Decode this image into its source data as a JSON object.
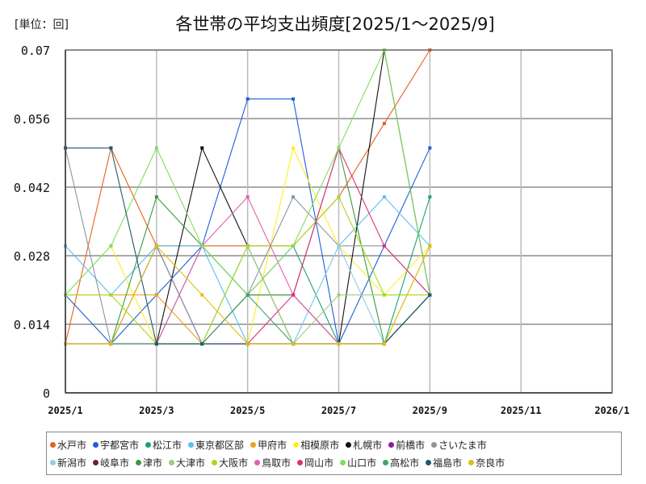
{
  "unit_label": "[単位：回]",
  "title": "各世帯の平均支出頻度[2025/1～2025/9]",
  "chart_data": {
    "type": "line",
    "title": "各世帯の平均支出頻度[2025/1～2025/9]",
    "xlabel": "",
    "ylabel": "[単位：回]",
    "ylim": [
      0,
      0.07
    ],
    "yticks": [
      "0",
      "0.014",
      "0.028",
      "0.042",
      "0.056",
      "0.07"
    ],
    "xticks": [
      "2025/1",
      "2025/3",
      "2025/5",
      "2025/7",
      "2025/9",
      "2025/11",
      "2026/1"
    ],
    "xrange_months": [
      0,
      12
    ],
    "grid": true,
    "legend_position": "bottom",
    "x": [
      "2025/1",
      "2025/2",
      "2025/3",
      "2025/4",
      "2025/5",
      "2025/6",
      "2025/7",
      "2025/8",
      "2025/9"
    ],
    "series": [
      {
        "name": "水戸市",
        "color": "#E8601C",
        "values": [
          0.01,
          0.05,
          0.03,
          0.03,
          0.03,
          0.03,
          0.04,
          0.055,
          0.07
        ]
      },
      {
        "name": "宇都宮市",
        "color": "#1F5FD8",
        "values": [
          0.02,
          0.01,
          0.02,
          0.03,
          0.06,
          0.06,
          0.01,
          0.03,
          0.05
        ]
      },
      {
        "name": "松江市",
        "color": "#1AA37A",
        "values": [
          0.01,
          0.01,
          0.01,
          0.03,
          0.02,
          0.03,
          0.01,
          0.01,
          0.04
        ]
      },
      {
        "name": "東京都区部",
        "color": "#5BC0EB",
        "values": [
          0.03,
          0.02,
          0.03,
          0.03,
          0.01,
          0.01,
          0.03,
          0.04,
          0.03
        ]
      },
      {
        "name": "甲府市",
        "color": "#F0A020",
        "values": [
          0.02,
          0.02,
          0.02,
          0.01,
          0.01,
          0.01,
          0.01,
          0.01,
          0.03
        ]
      },
      {
        "name": "相模原市",
        "color": "#FFEE22",
        "values": [
          0.02,
          0.03,
          0.01,
          0.01,
          0.01,
          0.05,
          0.03,
          0.02,
          0.03
        ]
      },
      {
        "name": "札幌市",
        "color": "#111111",
        "values": [
          0.01,
          0.01,
          0.01,
          0.05,
          0.03,
          0.01,
          0.01,
          0.07,
          0.02
        ]
      },
      {
        "name": "前橋市",
        "color": "#8E1B9A",
        "values": [
          0.01,
          0.01,
          0.03,
          0.01,
          0.01,
          0.01,
          0.01,
          0.01,
          0.02
        ]
      },
      {
        "name": "さいたま市",
        "color": "#8A96A0",
        "values": [
          0.05,
          0.01,
          0.03,
          0.01,
          0.02,
          0.04,
          0.03,
          0.03,
          0.02
        ]
      },
      {
        "name": "新潟市",
        "color": "#8FCDEA",
        "values": [
          0.01,
          0.01,
          0.01,
          0.01,
          0.03,
          0.01,
          0.03,
          0.01,
          0.02
        ]
      },
      {
        "name": "岐阜市",
        "color": "#6A1E3A",
        "values": [
          0.01,
          0.01,
          0.01,
          0.01,
          0.02,
          0.02,
          0.01,
          0.01,
          0.02
        ]
      },
      {
        "name": "津市",
        "color": "#3C9A3C",
        "values": [
          0.01,
          0.01,
          0.04,
          0.03,
          0.02,
          0.02,
          0.05,
          0.01,
          0.02
        ]
      },
      {
        "name": "大津市",
        "color": "#A2CC7A",
        "values": [
          0.01,
          0.01,
          0.01,
          0.01,
          0.03,
          0.01,
          0.02,
          0.02,
          0.02
        ]
      },
      {
        "name": "大阪市",
        "color": "#A8D820",
        "values": [
          0.02,
          0.02,
          0.01,
          0.01,
          0.03,
          0.03,
          0.04,
          0.02,
          0.02
        ]
      },
      {
        "name": "鳥取市",
        "color": "#E060B0",
        "values": [
          0.01,
          0.01,
          0.01,
          0.03,
          0.04,
          0.02,
          0.01,
          0.01,
          0.02
        ]
      },
      {
        "name": "岡山市",
        "color": "#E0307A",
        "values": [
          0.01,
          0.01,
          0.01,
          0.01,
          0.01,
          0.02,
          0.05,
          0.03,
          0.02
        ]
      },
      {
        "name": "山口市",
        "color": "#80DD60",
        "values": [
          0.02,
          0.03,
          0.05,
          0.03,
          0.02,
          0.03,
          0.05,
          0.07,
          0.02
        ]
      },
      {
        "name": "高松市",
        "color": "#3BA86A",
        "values": [
          0.01,
          0.01,
          0.01,
          0.01,
          0.02,
          0.01,
          0.01,
          0.01,
          0.02
        ]
      },
      {
        "name": "福島市",
        "color": "#1E5A6A",
        "values": [
          0.05,
          0.05,
          0.01,
          0.01,
          0.01,
          0.01,
          0.01,
          0.01,
          0.02
        ]
      },
      {
        "name": "奈良市",
        "color": "#E0C010",
        "values": [
          0.01,
          0.01,
          0.03,
          0.02,
          0.01,
          0.01,
          0.01,
          0.01,
          0.03
        ]
      }
    ]
  },
  "legend": {
    "rows": [
      [
        {
          "name": "水戸市",
          "color": "#E8601C"
        },
        {
          "name": "宇都宮市",
          "color": "#1F5FD8"
        },
        {
          "name": "松江市",
          "color": "#1AA37A"
        },
        {
          "name": "東京都区部",
          "color": "#5BC0EB"
        },
        {
          "name": "甲府市",
          "color": "#F0A020"
        },
        {
          "name": "相模原市",
          "color": "#FFEE22"
        },
        {
          "name": "札幌市",
          "color": "#111111"
        },
        {
          "name": "前橋市",
          "color": "#8E1B9A"
        },
        {
          "name": "さいたま市",
          "color": "#8A96A0"
        }
      ],
      [
        {
          "name": "新潟市",
          "color": "#8FCDEA"
        },
        {
          "name": "岐阜市",
          "color": "#6A1E3A"
        },
        {
          "name": "津市",
          "color": "#3C9A3C"
        },
        {
          "name": "大津市",
          "color": "#A2CC7A"
        },
        {
          "name": "大阪市",
          "color": "#A8D820"
        },
        {
          "name": "鳥取市",
          "color": "#E060B0"
        },
        {
          "name": "岡山市",
          "color": "#E0307A"
        },
        {
          "name": "山口市",
          "color": "#80DD60"
        },
        {
          "name": "高松市",
          "color": "#3BA86A"
        },
        {
          "name": "福島市",
          "color": "#1E5A6A"
        },
        {
          "name": "奈良市",
          "color": "#E0C010"
        }
      ]
    ]
  }
}
